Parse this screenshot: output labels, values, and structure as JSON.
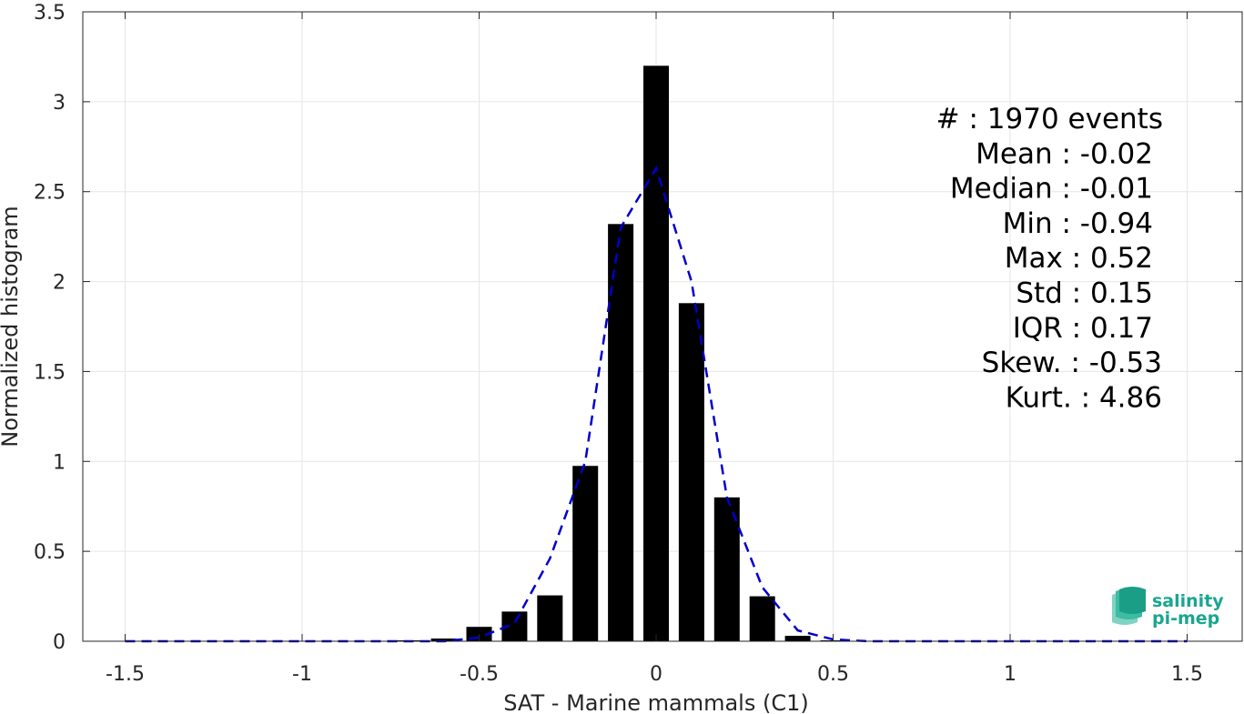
{
  "chart_data": {
    "type": "bar",
    "xlabel": "SAT - Marine mammals (C1)",
    "ylabel": "Normalized histogram",
    "xlim": [
      -1.5,
      1.5
    ],
    "ylim": [
      0,
      3.5
    ],
    "xticks": [
      -1.5,
      -1,
      -0.5,
      0,
      0.5,
      1,
      1.5
    ],
    "xtick_labels": [
      "-1.5",
      "-1",
      "-0.5",
      "0",
      "0.5",
      "1",
      "1.5"
    ],
    "yticks": [
      0,
      0.5,
      1,
      1.5,
      2,
      2.5,
      3,
      3.5
    ],
    "ytick_labels": [
      "0",
      "0.5",
      "1",
      "1.5",
      "2",
      "2.5",
      "3",
      "3.5"
    ],
    "grid": true,
    "bar_color": "#000000",
    "bars": {
      "x": [
        -0.7,
        -0.6,
        -0.5,
        -0.4,
        -0.3,
        -0.2,
        -0.1,
        0.0,
        0.1,
        0.2,
        0.3,
        0.4,
        0.5
      ],
      "values": [
        0.005,
        0.015,
        0.08,
        0.165,
        0.255,
        0.975,
        2.32,
        3.2,
        1.88,
        0.8,
        0.25,
        0.03,
        0.005
      ]
    },
    "fit_curve": {
      "color": "#0000cc",
      "style": "dashed",
      "x": [
        -1.5,
        -0.6,
        -0.5,
        -0.4,
        -0.3,
        -0.2,
        -0.1,
        0.0,
        0.1,
        0.2,
        0.3,
        0.4,
        0.5,
        0.6,
        1.5
      ],
      "y": [
        0.0,
        0.0,
        0.02,
        0.1,
        0.46,
        1.0,
        2.3,
        2.63,
        2.0,
        0.8,
        0.3,
        0.06,
        0.01,
        0.0,
        0.0
      ]
    },
    "stats": [
      "#  : 1970 events",
      "Mean : -0.02",
      "Median : -0.01",
      "Min : -0.94",
      "Max : 0.52",
      "Std : 0.15",
      "IQR : 0.17",
      "Skew. : -0.53",
      "Kurt. : 4.86"
    ]
  },
  "logo": {
    "line1": "salinity",
    "line2": "pi-mep"
  }
}
